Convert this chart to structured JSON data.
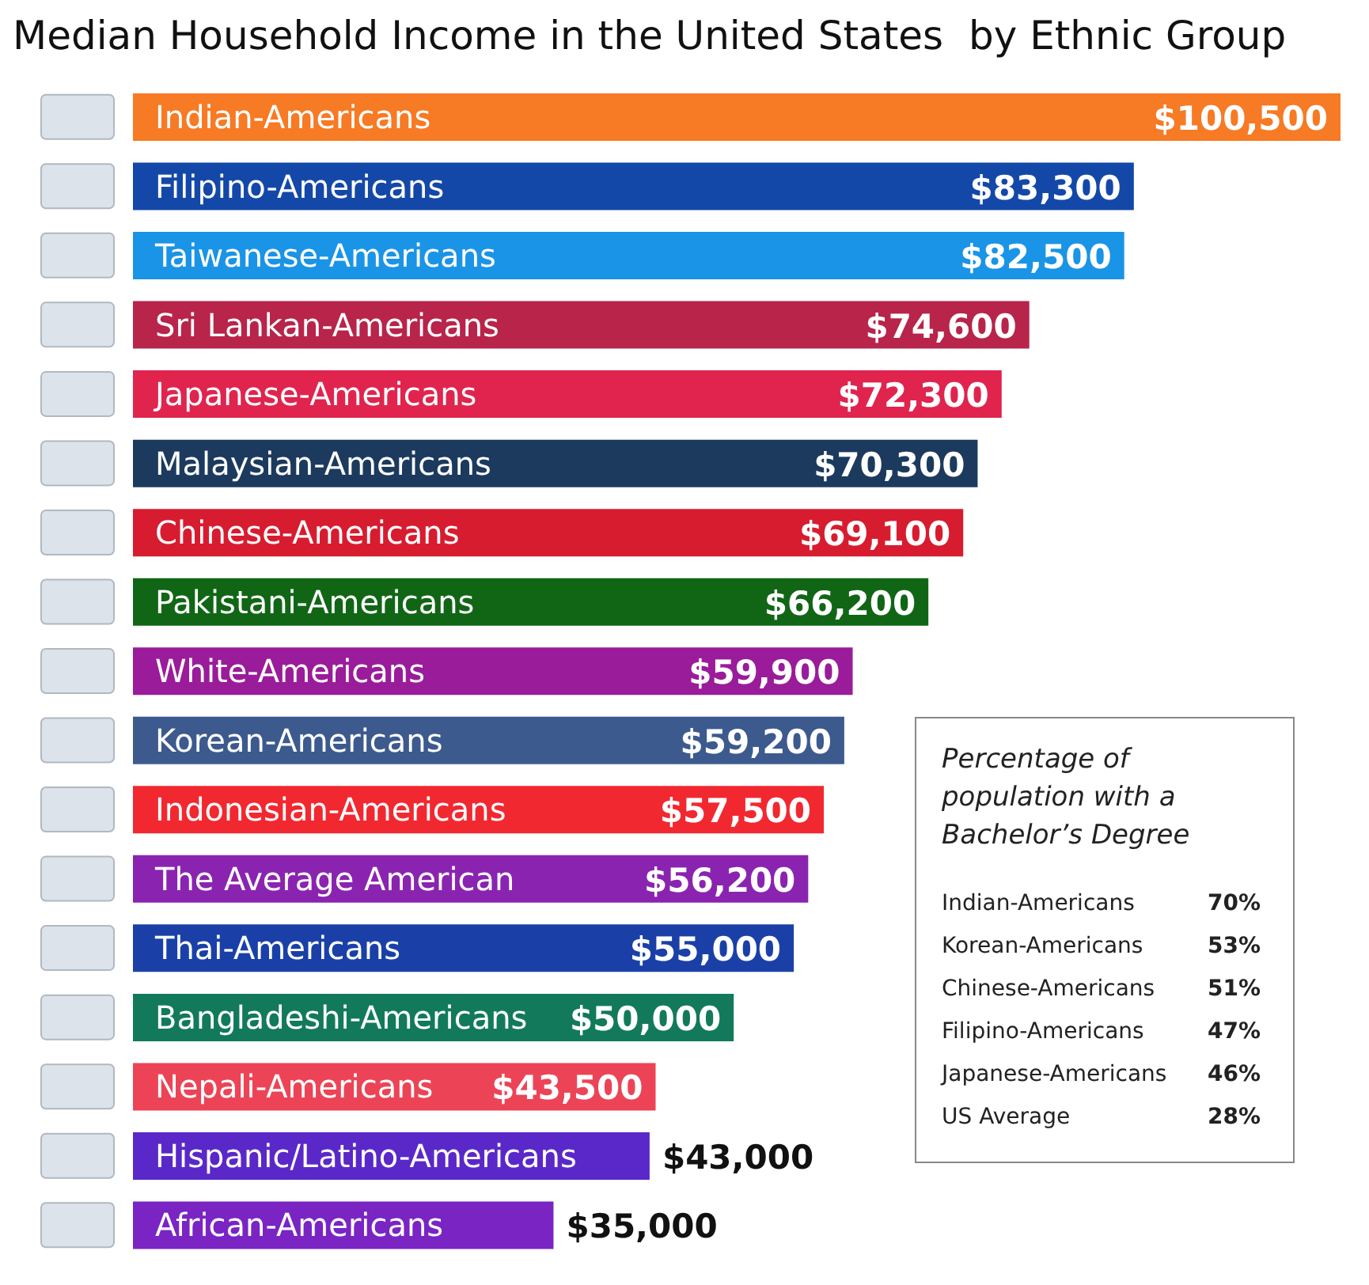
{
  "chart_data": {
    "type": "bar",
    "orientation": "horizontal",
    "title": "Median Household Income in the United States  by Ethnic Group",
    "categories": [
      "Indian-Americans",
      "Filipino-Americans",
      "Taiwanese-Americans",
      "Sri Lankan-Americans",
      "Japanese-Americans",
      "Malaysian-Americans",
      "Chinese-Americans",
      "Pakistani-Americans",
      "White-Americans",
      "Korean-Americans",
      "Indonesian-Americans",
      "The Average American",
      "Thai-Americans",
      "Bangladeshi-Americans",
      "Nepali-Americans",
      "Hispanic/Latino-Americans",
      "African-Americans"
    ],
    "values": [
      100500,
      83300,
      82500,
      74600,
      72300,
      70300,
      69100,
      66200,
      59900,
      59200,
      57500,
      56200,
      55000,
      50000,
      43500,
      43000,
      35000
    ],
    "value_labels": [
      "$100,500",
      "$83,300",
      "$82,500",
      "$74,600",
      "$72,300",
      "$70,300",
      "$69,100",
      "$66,200",
      "$59,900",
      "$59,200",
      "$57,500",
      "$56,200",
      "$55,000",
      "$50,000",
      "$43,500",
      "$43,000",
      "$35,000"
    ],
    "colors": [
      "#f77a24",
      "#1448a8",
      "#1a94e6",
      "#b8244a",
      "#e0244e",
      "#1c3a5e",
      "#d81c30",
      "#116616",
      "#9a1c9a",
      "#3c5a8e",
      "#f22830",
      "#8a24b0",
      "#1a40a8",
      "#127a5a",
      "#ec4456",
      "#5a28c8",
      "#7a24c4"
    ],
    "annotations": [
      "Percentage of population with a Bachelor’s Degree",
      "Indian-Americans 70%",
      "Korean-Americans 53%",
      "Chinese-Americans 51%",
      "Filipino-Americans 47%",
      "Japanese-Americans 46%",
      "US Average 28%"
    ]
  }
}
